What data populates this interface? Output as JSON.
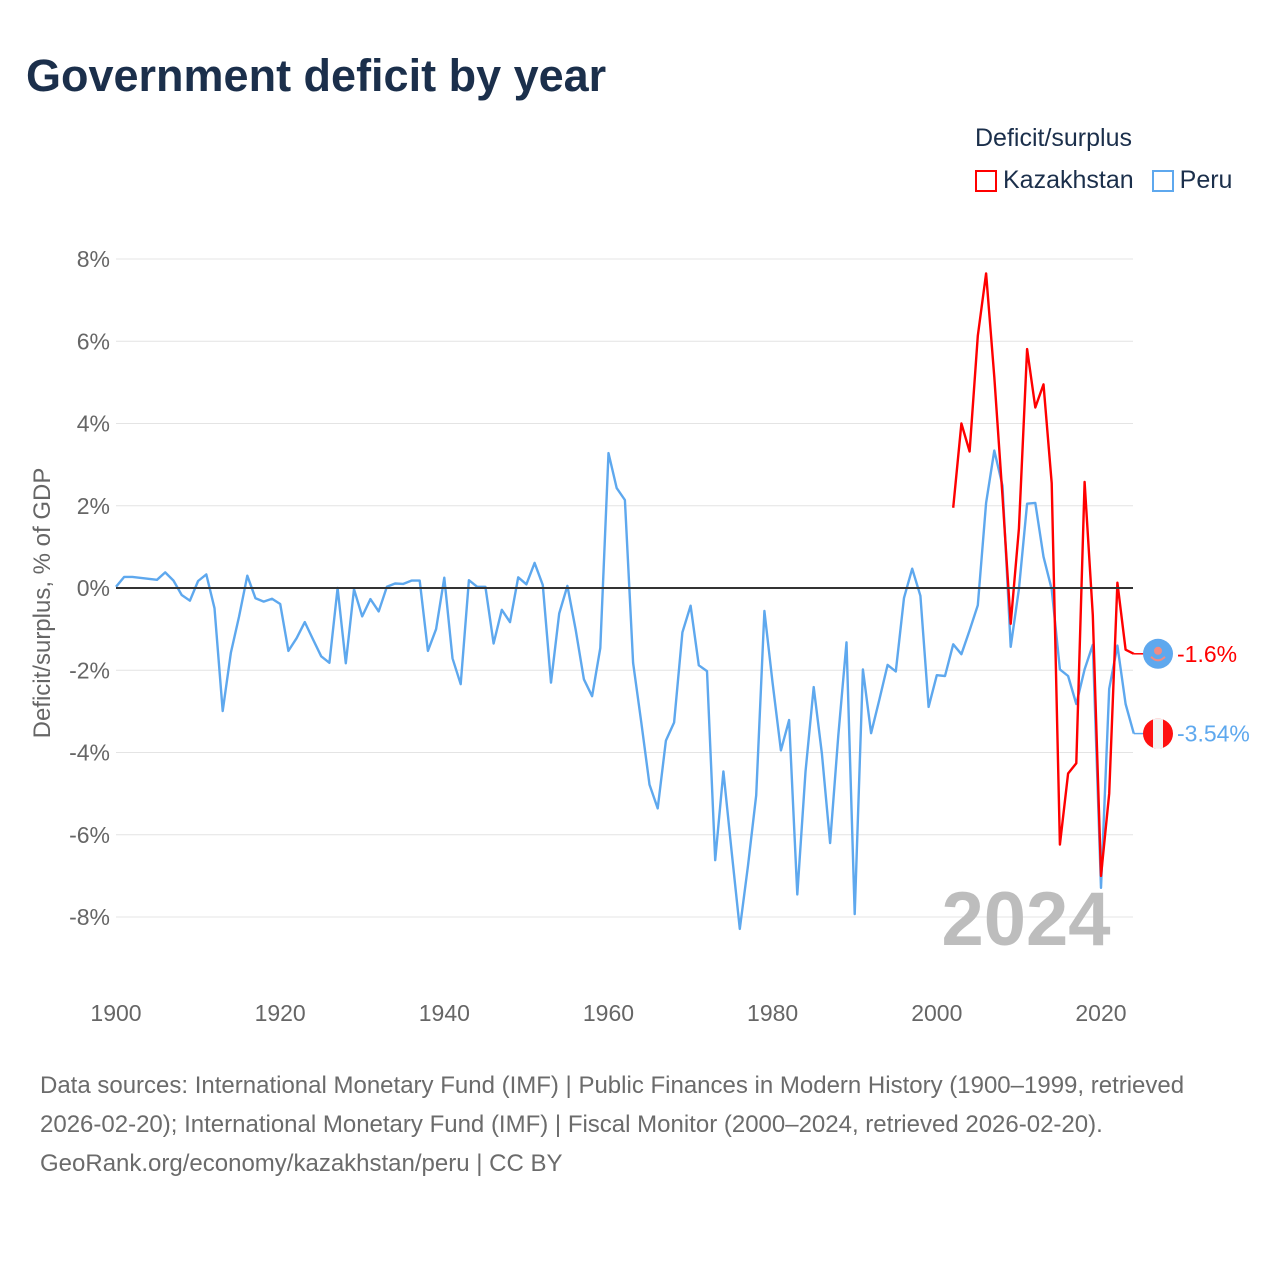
{
  "title": "Government deficit by year",
  "legend": {
    "title": "Deficit/surplus",
    "items": [
      {
        "name": "Kazakhstan",
        "color": "#ff0000"
      },
      {
        "name": "Peru",
        "color": "#5ea8ee"
      }
    ]
  },
  "footer": {
    "sources": "Data sources: International Monetary Fund (IMF) | Public Finances in Modern History (1900–1999, retrieved 2026-02-20); International Monetary Fund (IMF) | Fiscal Monitor (2000–2024, retrieved 2026-02-20).",
    "credit": "GeoRank.org/economy/kazakhstan/peru | CC BY"
  },
  "chart_data": {
    "type": "line",
    "title": "Government deficit by year",
    "xlabel": "",
    "ylabel": "Deficit/surplus, % of GDP",
    "xlim": [
      1900,
      2024
    ],
    "ylim": [
      -8,
      8
    ],
    "x_ticks": [
      "1900",
      "1920",
      "1940",
      "1960",
      "1980",
      "2000",
      "2020"
    ],
    "y_ticks": [
      "8%",
      "6%",
      "4%",
      "2%",
      "0%",
      "-2%",
      "-4%",
      "-6%",
      "-8%"
    ],
    "year_label": "2024",
    "grid": true,
    "legend_position": "top-right",
    "series": [
      {
        "name": "Kazakhstan",
        "color": "#ff0000",
        "end_label": "-1.6%",
        "flag": "kazakhstan-flag",
        "x": [
          2002,
          2003,
          2004,
          2005,
          2006,
          2007,
          2008,
          2009,
          2010,
          2011,
          2012,
          2013,
          2014,
          2015,
          2016,
          2017,
          2018,
          2019,
          2020,
          2021,
          2022,
          2023,
          2024
        ],
        "values": [
          1.95,
          4.0,
          3.32,
          6.13,
          7.65,
          5.13,
          2.23,
          -0.87,
          1.44,
          5.81,
          4.39,
          4.95,
          2.55,
          -6.24,
          -4.51,
          -4.26,
          2.58,
          -0.66,
          -7.0,
          -5.0,
          0.13,
          -1.5,
          -1.6
        ]
      },
      {
        "name": "Peru",
        "color": "#5ea8ee",
        "end_label": "-3.54%",
        "flag": "peru-flag",
        "x": [
          1900,
          1901,
          1902,
          1905,
          1906,
          1907,
          1908,
          1909,
          1910,
          1911,
          1912,
          1913,
          1914,
          1915,
          1916,
          1917,
          1918,
          1919,
          1920,
          1921,
          1922,
          1923,
          1924,
          1925,
          1926,
          1927,
          1928,
          1929,
          1930,
          1931,
          1932,
          1933,
          1934,
          1935,
          1936,
          1937,
          1938,
          1939,
          1940,
          1941,
          1942,
          1943,
          1944,
          1945,
          1946,
          1947,
          1948,
          1949,
          1950,
          1951,
          1952,
          1953,
          1954,
          1955,
          1956,
          1957,
          1958,
          1959,
          1960,
          1961,
          1962,
          1963,
          1964,
          1965,
          1966,
          1967,
          1968,
          1969,
          1970,
          1971,
          1972,
          1973,
          1974,
          1975,
          1976,
          1977,
          1978,
          1979,
          1980,
          1981,
          1982,
          1983,
          1984,
          1985,
          1986,
          1987,
          1988,
          1989,
          1990,
          1991,
          1992,
          1993,
          1994,
          1995,
          1996,
          1997,
          1998,
          1999,
          2000,
          2001,
          2002,
          2003,
          2004,
          2005,
          2006,
          2007,
          2008,
          2009,
          2010,
          2011,
          2012,
          2013,
          2014,
          2015,
          2016,
          2017,
          2018,
          2019,
          2020,
          2021,
          2022,
          2023,
          2024
        ],
        "values": [
          0.03,
          0.27,
          0.27,
          0.2,
          0.38,
          0.18,
          -0.17,
          -0.31,
          0.17,
          0.33,
          -0.49,
          -2.99,
          -1.57,
          -0.69,
          0.3,
          -0.25,
          -0.33,
          -0.26,
          -0.39,
          -1.53,
          -1.22,
          -0.83,
          -1.25,
          -1.66,
          -1.82,
          0.0,
          -1.83,
          -0.03,
          -0.69,
          -0.27,
          -0.57,
          0.03,
          0.11,
          0.1,
          0.18,
          0.18,
          -1.53,
          -1.0,
          0.25,
          -1.71,
          -2.34,
          0.19,
          0.03,
          0.03,
          -1.35,
          -0.53,
          -0.83,
          0.26,
          0.09,
          0.61,
          0.07,
          -2.3,
          -0.62,
          0.05,
          -1.02,
          -2.22,
          -2.63,
          -1.46,
          3.28,
          2.43,
          2.14,
          -1.82,
          -3.27,
          -4.78,
          -5.36,
          -3.71,
          -3.27,
          -1.08,
          -0.43,
          -1.88,
          -2.02,
          -6.62,
          -4.46,
          -6.4,
          -8.29,
          -6.75,
          -5.04,
          -0.56,
          -2.31,
          -3.95,
          -3.21,
          -7.45,
          -4.47,
          -2.41,
          -4.03,
          -6.2,
          -3.59,
          -1.32,
          -7.93,
          -1.98,
          -3.53,
          -2.72,
          -1.87,
          -2.03,
          -0.24,
          0.47,
          -0.19,
          -2.89,
          -2.12,
          -2.14,
          -1.37,
          -1.61,
          -1.03,
          -0.42,
          2.07,
          3.34,
          2.49,
          -1.43,
          -0.03,
          2.05,
          2.07,
          0.76,
          -0.03,
          -1.98,
          -2.14,
          -2.82,
          -1.98,
          -1.38,
          -7.29,
          -2.45,
          -1.4,
          -2.82,
          -3.54
        ]
      }
    ]
  }
}
